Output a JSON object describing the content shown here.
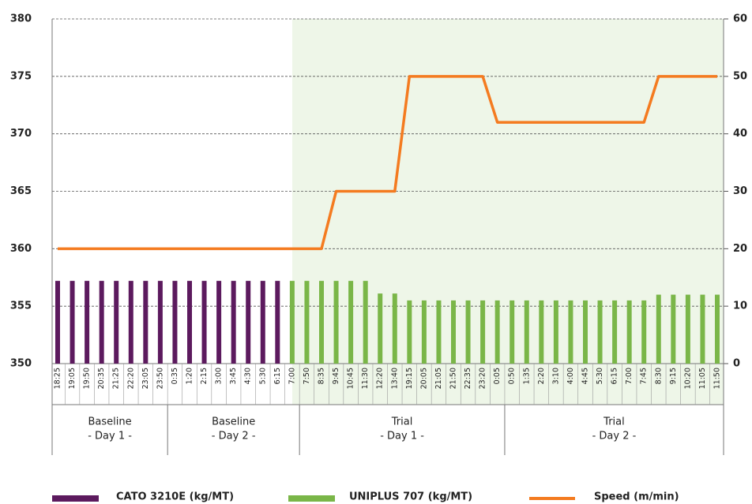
{
  "chart_data": {
    "type": "bar-line",
    "categories": [
      "18:25",
      "19:05",
      "19:50",
      "20:35",
      "21:25",
      "22:20",
      "23:05",
      "23:50",
      "0:35",
      "1:20",
      "2:15",
      "3:00",
      "3:45",
      "4:30",
      "5:30",
      "6:15",
      "7:00",
      "7:50",
      "8:35",
      "9:45",
      "10:45",
      "11:30",
      "12:20",
      "13:40",
      "19:15",
      "20:05",
      "21:05",
      "21:50",
      "22:35",
      "23:20",
      "0:05",
      "0:50",
      "1:35",
      "2:20",
      "3:10",
      "4:00",
      "4:45",
      "5:30",
      "6:15",
      "7:00",
      "7:45",
      "8:30",
      "9:15",
      "10:20",
      "11:05",
      "11:50"
    ],
    "groups": [
      {
        "label": "Baseline",
        "sub": "- Day 1 -"
      },
      {
        "label": "Baseline",
        "sub": "- Day 2 -"
      },
      {
        "label": "Trial",
        "sub": "- Day 1 -"
      },
      {
        "label": "Trial",
        "sub": "- Day 2 -"
      }
    ],
    "series": [
      {
        "name": "CATO 3210E (kg/MT)",
        "color": "#5c1a5e",
        "kind": "bar",
        "values": [
          357.2,
          357.2,
          357.2,
          357.2,
          357.2,
          357.2,
          357.2,
          357.2,
          357.2,
          357.2,
          357.2,
          357.2,
          357.2,
          357.2,
          357.2,
          357.2,
          null,
          null,
          null,
          null,
          null,
          null,
          null,
          null,
          null,
          null,
          null,
          null,
          null,
          null,
          null,
          null,
          null,
          null,
          null,
          null,
          null,
          null,
          null,
          null,
          null,
          null,
          null,
          null,
          null,
          null
        ]
      },
      {
        "name": "UNIPLUS 707 (kg/MT)",
        "color": "#7ab648",
        "kind": "bar",
        "values": [
          null,
          null,
          null,
          null,
          null,
          null,
          null,
          null,
          null,
          null,
          null,
          null,
          null,
          null,
          null,
          null,
          357.2,
          357.2,
          357.2,
          357.2,
          357.2,
          357.2,
          356.1,
          356.1,
          355.5,
          355.5,
          355.5,
          355.5,
          355.5,
          355.5,
          355.5,
          355.5,
          355.5,
          355.5,
          355.5,
          355.5,
          355.5,
          355.5,
          355.5,
          355.5,
          355.5,
          356.0,
          356.0,
          356.0,
          356.0,
          356.0
        ]
      },
      {
        "name": "Speed (m/min)",
        "color": "#f47b20",
        "kind": "line",
        "axis": "y2",
        "values": [
          20,
          20,
          20,
          20,
          20,
          20,
          20,
          20,
          20,
          20,
          20,
          20,
          20,
          20,
          20,
          20,
          20,
          20,
          20,
          30,
          30,
          30,
          30,
          30,
          50,
          50,
          50,
          50,
          50,
          50,
          42,
          42,
          42,
          42,
          42,
          42,
          42,
          42,
          42,
          42,
          42,
          50,
          50,
          50,
          50,
          50
        ]
      }
    ],
    "ylim": [
      350,
      380
    ],
    "yticks": [
      350,
      355,
      360,
      365,
      370,
      375,
      380
    ],
    "y2lim": [
      0,
      60
    ],
    "y2ticks": [
      0,
      10,
      20,
      30,
      40,
      50,
      60
    ],
    "grid": true
  }
}
